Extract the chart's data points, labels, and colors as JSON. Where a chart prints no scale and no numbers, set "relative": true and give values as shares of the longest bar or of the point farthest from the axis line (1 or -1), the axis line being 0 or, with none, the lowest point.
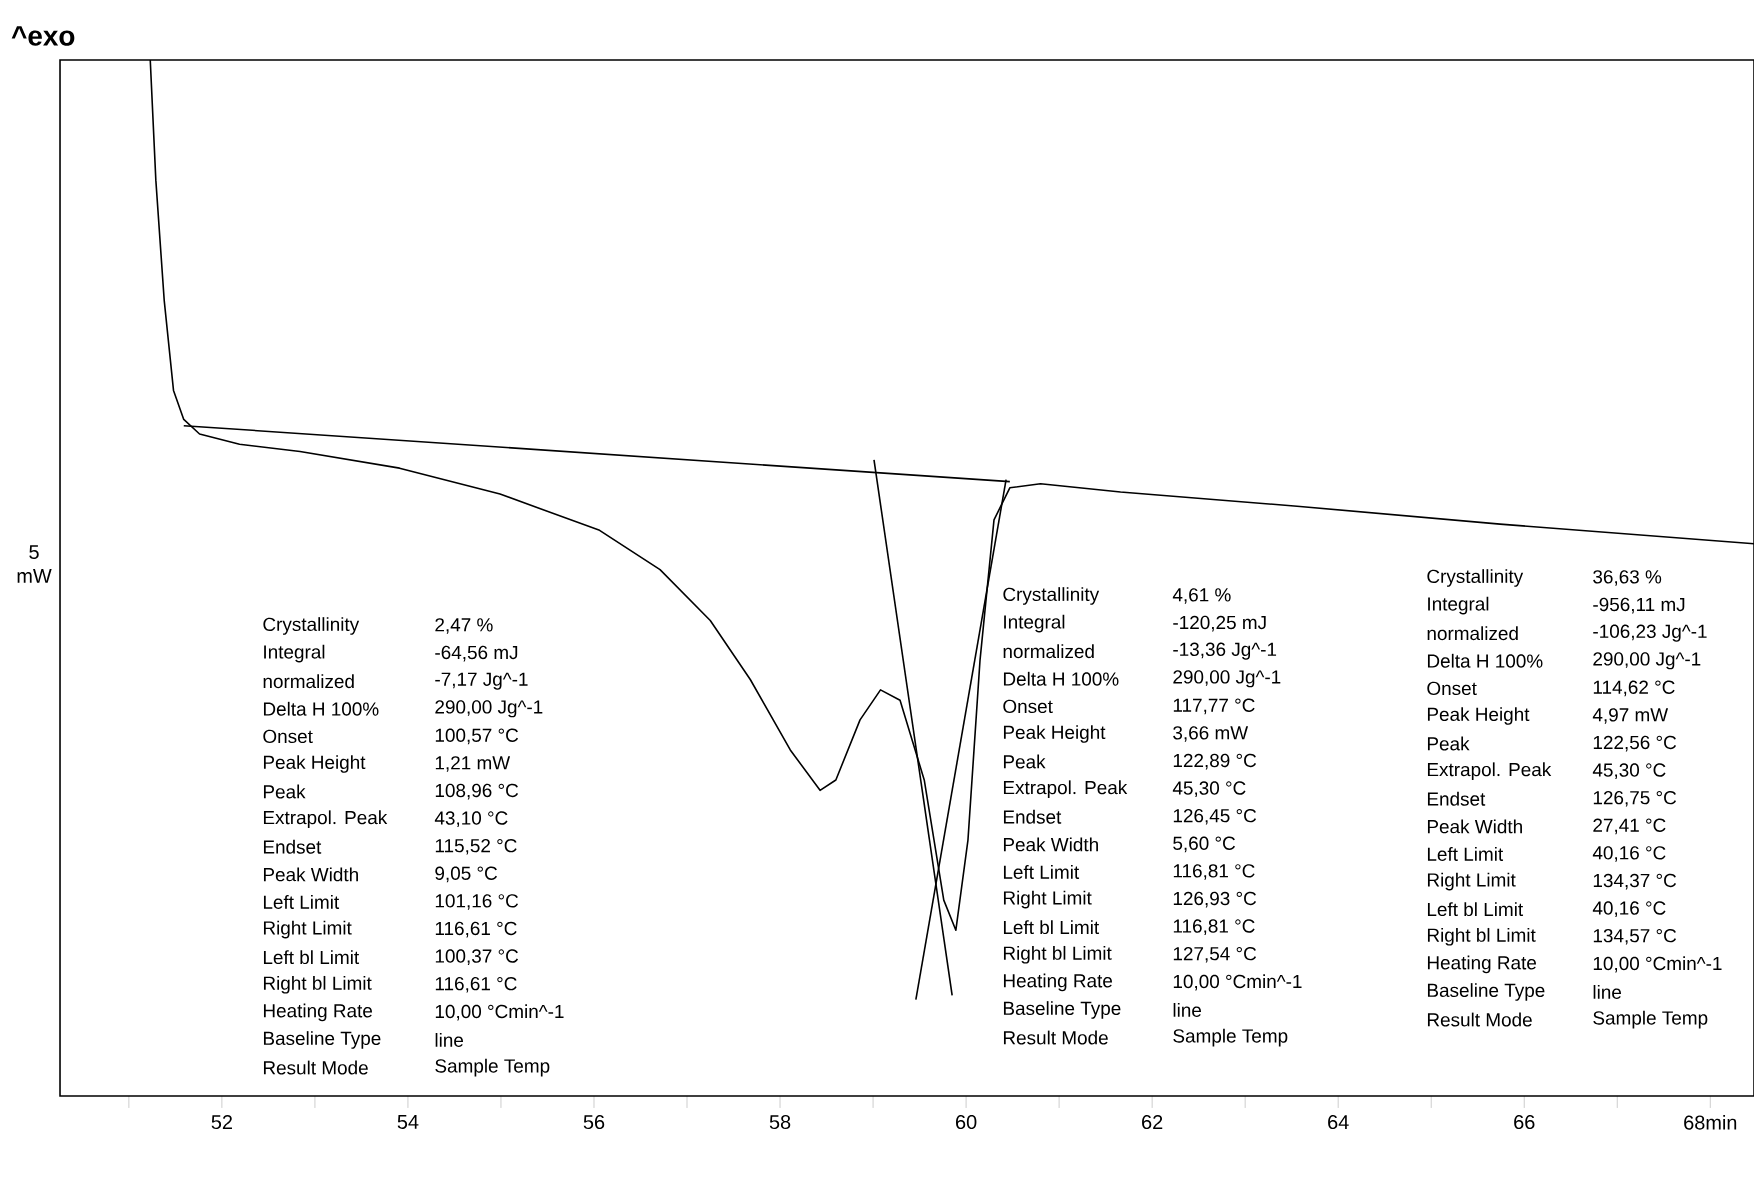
{
  "chart_data": {
    "type": "line",
    "relative": true,
    "ylabel": "^exo",
    "xlim": [
      50.26,
      68.47
    ],
    "xticks": [
      {
        "value": 51,
        "label": null
      },
      52,
      {
        "value": 53,
        "label": null
      },
      54,
      {
        "value": 55,
        "label": null
      },
      56,
      {
        "value": 57,
        "label": null
      },
      58,
      {
        "value": 59,
        "label": null
      },
      60,
      {
        "value": 61,
        "label": null
      },
      62,
      {
        "value": 63,
        "label": null
      },
      64,
      {
        "value": 65,
        "label": null
      },
      66,
      {
        "value": 67,
        "label": null
      },
      {
        "value": 68,
        "label": "68min"
      }
    ],
    "series": [
      {
        "color": "#000000",
        "x": [
          51.23,
          51.29,
          51.38,
          51.48,
          51.59,
          51.76,
          52.19,
          52.84,
          53.91,
          54.99,
          56.06,
          56.71,
          57.25,
          57.68,
          58.11,
          58.43,
          58.6,
          58.86,
          59.08,
          59.29,
          59.55,
          59.76,
          59.89,
          60.02,
          60.15,
          60.3,
          60.47,
          60.8,
          61.66,
          63.59,
          65.74,
          68.47
        ],
        "values": [
          1.0,
          0.884,
          0.768,
          0.681,
          0.653,
          0.639,
          0.629,
          0.622,
          0.606,
          0.581,
          0.546,
          0.508,
          0.459,
          0.402,
          0.334,
          0.295,
          0.305,
          0.363,
          0.392,
          0.382,
          0.305,
          0.189,
          0.16,
          0.247,
          0.421,
          0.556,
          0.587,
          0.591,
          0.583,
          0.569,
          0.552,
          0.533
        ]
      },
      {
        "color": "#000000",
        "x": [
          51.59,
          60.47
        ],
        "values": [
          0.647,
          0.593
        ]
      },
      {
        "color": "#000000",
        "x": [
          59.01,
          59.85
        ],
        "values": [
          0.614,
          0.097
        ]
      },
      {
        "color": "#000000",
        "x": [
          59.46,
          60.43
        ],
        "values": [
          0.093,
          0.595
        ]
      }
    ],
    "annotations": [
      "Crystallinity",
      "2,47 %",
      "Integral",
      "-64,56 mJ",
      "normalized",
      "-7,17 Jg^-1",
      "Delta H 100%",
      "290,00 Jg^-1",
      "Onset",
      "100,57 °C",
      "Peak Height",
      "1,21 mW",
      "Peak",
      "108,96 °C",
      "Extrapol. Peak",
      "43,10 °C",
      "Endset",
      "115,52 °C",
      "Peak Width",
      "9,05 °C",
      "Left Limit",
      "101,16 °C",
      "Right Limit",
      "116,61 °C",
      "Left bl Limit",
      "100,37 °C",
      "Right bl Limit",
      "116,61 °C",
      "Heating Rate",
      "10,00 °Cmin^-1",
      "Baseline Type",
      "line",
      "Result Mode",
      "Sample Temp",
      "Crystallinity",
      "4,61 %",
      "Integral",
      "-120,25 mJ",
      "normalized",
      "-13,36 Jg^-1",
      "Delta H 100%",
      "290,00 Jg^-1",
      "Onset",
      "117,77 °C",
      "Peak Height",
      "3,66 mW",
      "Peak",
      "122,89 °C",
      "Extrapol. Peak",
      "45,30 °C",
      "Endset",
      "126,45 °C",
      "Peak Width",
      "5,60 °C",
      "Left Limit",
      "116,81 °C",
      "Right Limit",
      "126,93 °C",
      "Left bl Limit",
      "116,81 °C",
      "Right bl Limit",
      "127,54 °C",
      "Heating Rate",
      "10,00 °Cmin^-1",
      "Baseline Type",
      "line",
      "Result Mode",
      "Sample Temp",
      "Crystallinity",
      "36,63 %",
      "Integral",
      "-956,11 mJ",
      "normalized",
      "-106,23 Jg^-1",
      "Delta H 100%",
      "290,00 Jg^-1",
      "Onset",
      "114,62 °C",
      "Peak Height",
      "4,97 mW",
      "Peak",
      "122,56 °C",
      "Extrapol. Peak",
      "45,30 °C",
      "Endset",
      "126,75 °C",
      "Peak Width",
      "27,41 °C",
      "Left Limit",
      "40,16 °C",
      "Right Limit",
      "134,37 °C",
      "Left bl Limit",
      "40,16 °C",
      "Right bl Limit",
      "134,57 °C",
      "Heating Rate",
      "10,00 °Cmin^-1",
      "Baseline Type",
      "line",
      "Result Mode",
      "Sample Temp",
      "5 mW"
    ]
  }
}
